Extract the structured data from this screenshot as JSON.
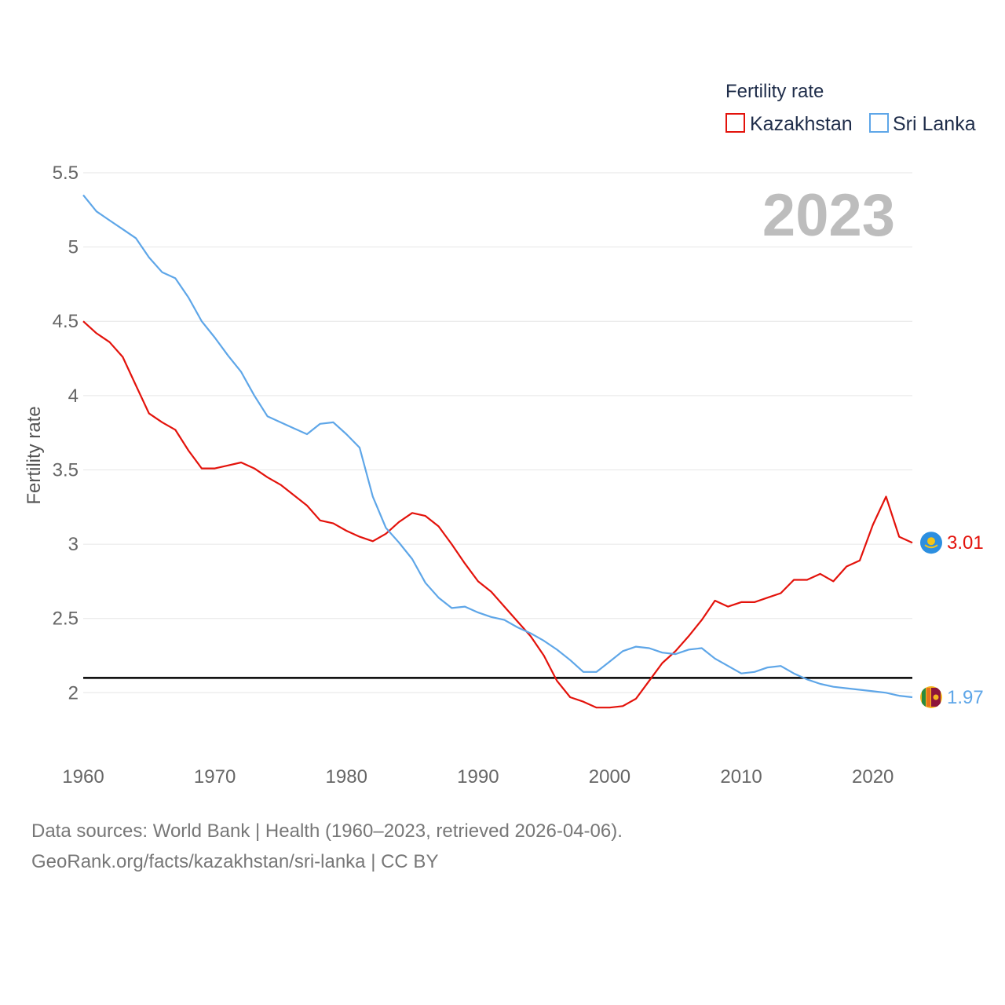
{
  "chart_data": {
    "type": "line",
    "ylabel": "Fertility rate",
    "legend_title": "Fertility rate",
    "highlight_year": "2023",
    "x": [
      1960,
      1961,
      1962,
      1963,
      1964,
      1965,
      1966,
      1967,
      1968,
      1969,
      1970,
      1971,
      1972,
      1973,
      1974,
      1975,
      1976,
      1977,
      1978,
      1979,
      1980,
      1981,
      1982,
      1983,
      1984,
      1985,
      1986,
      1987,
      1988,
      1989,
      1990,
      1991,
      1992,
      1993,
      1994,
      1995,
      1996,
      1997,
      1998,
      1999,
      2000,
      2001,
      2002,
      2003,
      2004,
      2005,
      2006,
      2007,
      2008,
      2009,
      2010,
      2011,
      2012,
      2013,
      2014,
      2015,
      2016,
      2017,
      2018,
      2019,
      2020,
      2021,
      2022,
      2023
    ],
    "xlim": [
      1960,
      2023
    ],
    "ylim": [
      1.6,
      5.5
    ],
    "x_ticks": [
      1960,
      1970,
      1980,
      1990,
      2000,
      2010,
      2020
    ],
    "y_ticks": [
      2,
      2.5,
      3,
      3.5,
      4,
      4.5,
      5,
      5.5
    ],
    "y_tick_labels": [
      "2",
      "2.5",
      "3",
      "3.5",
      "4",
      "4.5",
      "5",
      "5.5"
    ],
    "x_tick_labels": [
      "1960",
      "1970",
      "1980",
      "1990",
      "2000",
      "2010",
      "2020"
    ],
    "reference_line": 2.1,
    "series": [
      {
        "name": "Kazakhstan",
        "color": "#e3120b",
        "end_label": "3.01",
        "flag_icon": "kazakhstan-flag-icon",
        "values": [
          4.5,
          4.42,
          4.36,
          4.26,
          4.07,
          3.88,
          3.82,
          3.77,
          3.63,
          3.51,
          3.51,
          3.53,
          3.55,
          3.51,
          3.45,
          3.4,
          3.33,
          3.26,
          3.16,
          3.14,
          3.09,
          3.05,
          3.02,
          3.07,
          3.15,
          3.21,
          3.19,
          3.12,
          3.0,
          2.87,
          2.75,
          2.68,
          2.58,
          2.48,
          2.38,
          2.25,
          2.08,
          1.97,
          1.94,
          1.9,
          1.9,
          1.91,
          1.96,
          2.08,
          2.2,
          2.28,
          2.38,
          2.49,
          2.62,
          2.58,
          2.61,
          2.61,
          2.64,
          2.67,
          2.76,
          2.76,
          2.8,
          2.75,
          2.85,
          2.89,
          3.13,
          3.32,
          3.05,
          3.01
        ]
      },
      {
        "name": "Sri Lanka",
        "color": "#5ea6e8",
        "end_label": "1.97",
        "flag_icon": "sri-lanka-flag-icon",
        "values": [
          5.35,
          5.24,
          5.18,
          5.12,
          5.06,
          4.93,
          4.83,
          4.79,
          4.66,
          4.5,
          4.39,
          4.27,
          4.16,
          4.0,
          3.86,
          3.82,
          3.78,
          3.74,
          3.81,
          3.82,
          3.74,
          3.65,
          3.32,
          3.11,
          3.01,
          2.9,
          2.74,
          2.64,
          2.57,
          2.58,
          2.54,
          2.51,
          2.49,
          2.44,
          2.4,
          2.35,
          2.29,
          2.22,
          2.14,
          2.14,
          2.21,
          2.28,
          2.31,
          2.3,
          2.27,
          2.26,
          2.29,
          2.3,
          2.23,
          2.18,
          2.13,
          2.14,
          2.17,
          2.18,
          2.13,
          2.09,
          2.06,
          2.04,
          2.03,
          2.02,
          2.01,
          2.0,
          1.98,
          1.97
        ]
      }
    ]
  },
  "footer": {
    "source_line": "Data sources: World Bank | Health (1960–2023, retrieved 2026-04-06).",
    "url_line": "GeoRank.org/facts/kazakhstan/sri-lanka | CC BY"
  }
}
